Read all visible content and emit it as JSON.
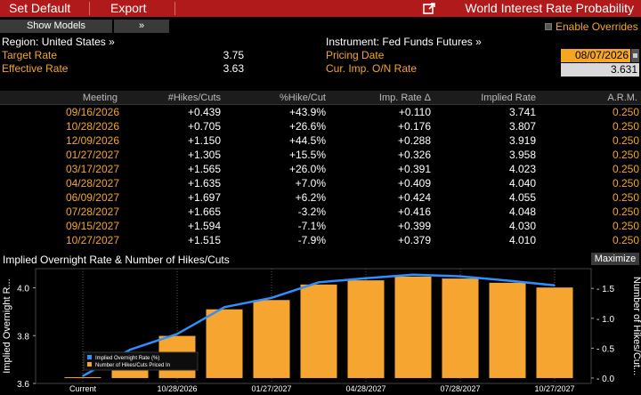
{
  "toolbar": {
    "set_default": "Set Default",
    "export": "Export",
    "title": "World Interest Rate Probability"
  },
  "controls": {
    "show_models": "Show Models",
    "chevron": "»",
    "enable_overrides": "Enable Overrides"
  },
  "info": {
    "region_label": "Region: United States »",
    "instrument_label": "Instrument: Fed Funds Futures »",
    "target_rate_label": "Target Rate",
    "target_rate_value": "3.75",
    "effective_rate_label": "Effective Rate",
    "effective_rate_value": "3.63",
    "pricing_date_label": "Pricing Date",
    "pricing_date_value": "08/07/2026",
    "cur_imp_label": "Cur. Imp. O/N Rate",
    "cur_imp_value": "3.631"
  },
  "table": {
    "headers": [
      "Meeting",
      "#Hikes/Cuts",
      "%Hike/Cut",
      "Imp. Rate Δ",
      "Implied Rate",
      "A.R.M."
    ],
    "rows": [
      [
        "09/16/2026",
        "+0.439",
        "+43.9%",
        "+0.110",
        "3.741",
        "0.250"
      ],
      [
        "10/28/2026",
        "+0.705",
        "+26.6%",
        "+0.176",
        "3.807",
        "0.250"
      ],
      [
        "12/09/2026",
        "+1.150",
        "+44.5%",
        "+0.288",
        "3.919",
        "0.250"
      ],
      [
        "01/27/2027",
        "+1.305",
        "+15.5%",
        "+0.326",
        "3.958",
        "0.250"
      ],
      [
        "03/17/2027",
        "+1.565",
        "+26.0%",
        "+0.391",
        "4.023",
        "0.250"
      ],
      [
        "04/28/2027",
        "+1.635",
        "+7.0%",
        "+0.409",
        "4.040",
        "0.250"
      ],
      [
        "06/09/2027",
        "+1.697",
        "+6.2%",
        "+0.424",
        "4.055",
        "0.250"
      ],
      [
        "07/28/2027",
        "+1.665",
        "-3.2%",
        "+0.416",
        "4.048",
        "0.250"
      ],
      [
        "09/15/2027",
        "+1.594",
        "-7.1%",
        "+0.399",
        "4.030",
        "0.250"
      ],
      [
        "10/27/2027",
        "+1.515",
        "-7.9%",
        "+0.379",
        "4.010",
        "0.250"
      ]
    ]
  },
  "chart": {
    "title": "Implied Overnight Rate & Number of Hikes/Cuts",
    "maximize": "Maximize"
  },
  "chart_data": {
    "type": "bar",
    "title": "Implied Overnight Rate & Number of Hikes/Cuts",
    "ylabel": "Implied Overnight R...",
    "ylabel_right": "Number of Hikes/Cut...",
    "categories": [
      "Current",
      "09/16/2026",
      "10/28/2026",
      "12/09/2026",
      "01/27/2027",
      "03/17/2027",
      "04/28/2027",
      "06/09/2027",
      "07/28/2027",
      "09/15/2027",
      "10/27/2027"
    ],
    "x_tick_labels": [
      "Current",
      "10/28/2026",
      "01/27/2027",
      "04/28/2027",
      "07/28/2027",
      "10/27/2027"
    ],
    "left_ticks": [
      "3.6",
      "3.8",
      "4.0"
    ],
    "right_ticks": [
      "0.0",
      "0.5",
      "1.0",
      "1.5"
    ],
    "ylim": [
      3.6,
      4.08
    ],
    "ylim_right": [
      -0.09,
      1.83
    ],
    "series": [
      {
        "name": "Implied Overnight Rate (%)",
        "type": "line",
        "axis": "left",
        "color": "#2f8fff",
        "values": [
          3.631,
          3.741,
          3.807,
          3.919,
          3.958,
          4.023,
          4.04,
          4.055,
          4.048,
          4.03,
          4.01
        ]
      },
      {
        "name": "Number of Hikes/Cuts Priced In",
        "type": "bar",
        "axis": "right",
        "color": "#f7a531",
        "values": [
          0.0,
          0.439,
          0.705,
          1.15,
          1.305,
          1.565,
          1.635,
          1.697,
          1.665,
          1.594,
          1.515
        ]
      }
    ],
    "legend": "bottom-left",
    "grid": "vertical-dotted"
  }
}
